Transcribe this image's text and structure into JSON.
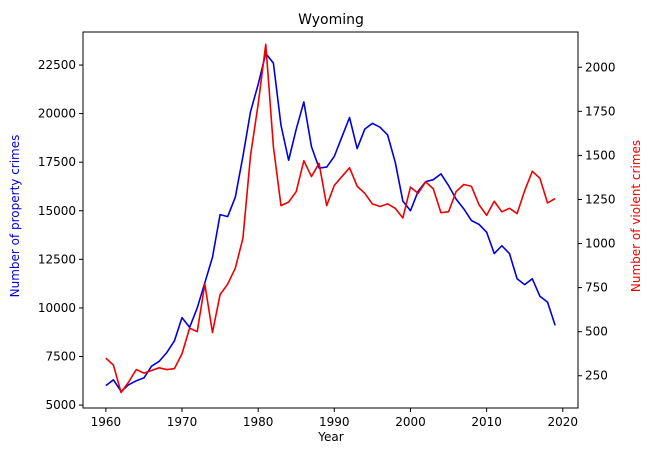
{
  "chart_data": {
    "type": "line",
    "title": "Wyoming",
    "xlabel": "Year",
    "ylabel_left": "Number of property crimes",
    "ylabel_right": "Number of violent crimes",
    "xlim": [
      1957,
      2022
    ],
    "ylim_left": [
      4850,
      24200
    ],
    "ylim_right": [
      67,
      2200
    ],
    "x_ticks": [
      1960,
      1970,
      1980,
      1990,
      2000,
      2010,
      2020
    ],
    "y_ticks_left": [
      5000,
      7500,
      10000,
      12500,
      15000,
      17500,
      20000,
      22500
    ],
    "y_ticks_right": [
      250,
      500,
      750,
      1000,
      1250,
      1500,
      1750,
      2000
    ],
    "grid": false,
    "colors": {
      "property": "#0000dd",
      "violent": "#ee0000",
      "axis": "#000000"
    },
    "x": [
      1960,
      1961,
      1962,
      1963,
      1964,
      1965,
      1966,
      1967,
      1968,
      1969,
      1970,
      1971,
      1972,
      1973,
      1974,
      1975,
      1976,
      1977,
      1978,
      1979,
      1980,
      1981,
      1982,
      1983,
      1984,
      1985,
      1986,
      1987,
      1988,
      1989,
      1990,
      1991,
      1992,
      1993,
      1994,
      1995,
      1996,
      1997,
      1998,
      1999,
      2000,
      2001,
      2002,
      2003,
      2004,
      2005,
      2006,
      2007,
      2008,
      2009,
      2010,
      2011,
      2012,
      2013,
      2014,
      2015,
      2016,
      2017,
      2018,
      2019
    ],
    "series": [
      {
        "axis": "left",
        "color": "#0000dd",
        "values": [
          6000,
          6300,
          5700,
          6050,
          6250,
          6400,
          7000,
          7250,
          7700,
          8300,
          9500,
          9000,
          10000,
          11300,
          12600,
          14800,
          14700,
          15700,
          17800,
          20100,
          21500,
          23100,
          22600,
          19400,
          17600,
          19200,
          20600,
          18300,
          17200,
          17250,
          17800,
          18800,
          19800,
          18200,
          19200,
          19500,
          19300,
          18900,
          17500,
          15500,
          15000,
          16000,
          16500,
          16600,
          16900,
          16300,
          15600,
          15100,
          14500,
          14300,
          13900,
          12800,
          13200,
          12800,
          11500,
          11200,
          11500,
          10600,
          10300,
          9100
        ]
      },
      {
        "axis": "right",
        "color": "#ee0000",
        "values": [
          350,
          310,
          155,
          215,
          285,
          265,
          280,
          295,
          285,
          290,
          375,
          520,
          500,
          770,
          495,
          710,
          770,
          860,
          1030,
          1500,
          1790,
          2130,
          1550,
          1215,
          1235,
          1295,
          1470,
          1380,
          1455,
          1215,
          1330,
          1380,
          1430,
          1325,
          1285,
          1225,
          1210,
          1225,
          1200,
          1145,
          1320,
          1285,
          1350,
          1310,
          1175,
          1180,
          1295,
          1335,
          1325,
          1220,
          1160,
          1240,
          1180,
          1200,
          1170,
          1300,
          1410,
          1370,
          1230,
          1255
        ]
      }
    ]
  }
}
